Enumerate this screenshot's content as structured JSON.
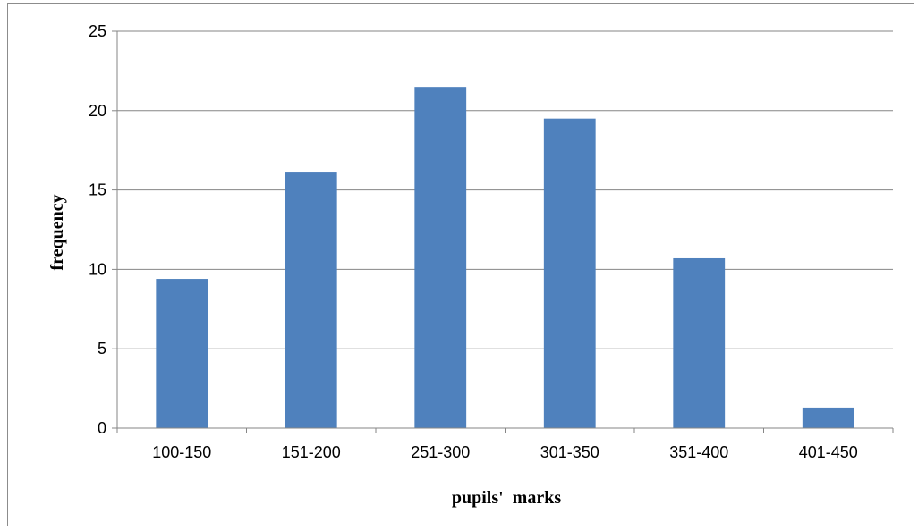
{
  "chart_data": {
    "type": "bar",
    "categories": [
      "100-150",
      "151-200",
      "251-300",
      "301-350",
      "351-400",
      "401-450"
    ],
    "values": [
      9.4,
      16.1,
      21.5,
      19.5,
      10.7,
      1.3
    ],
    "xlabel": "pupils'  marks",
    "ylabel": "frequency",
    "ylim": [
      0,
      25
    ],
    "yticks": [
      0,
      5,
      10,
      15,
      20,
      25
    ],
    "grid": true,
    "legend": "none",
    "bar_color": "#4f81bd",
    "grid_color": "#868686"
  }
}
